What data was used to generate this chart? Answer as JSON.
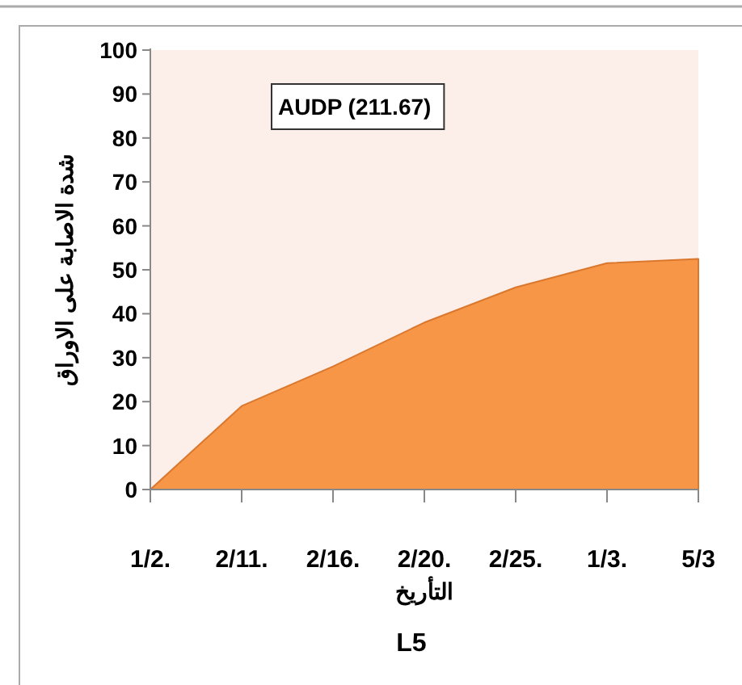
{
  "chart_data": {
    "type": "area",
    "title": "L5",
    "xlabel": "التأريخ",
    "ylabel": "شدة الاصابة على الاوراق",
    "categories": [
      "1/2.",
      "2/11.",
      "2/16.",
      "2/20.",
      "2/25.",
      "1/3.",
      "5/3"
    ],
    "series": [
      {
        "color": "#f79646",
        "values": [
          0,
          19,
          28,
          38,
          46,
          51.5,
          52.5
        ]
      }
    ],
    "ylim": [
      0,
      100
    ],
    "yticks": [
      0,
      10,
      20,
      30,
      40,
      50,
      60,
      70,
      80,
      90,
      100
    ],
    "grid": false,
    "annotations": [
      "AUDP (211.67)"
    ]
  }
}
